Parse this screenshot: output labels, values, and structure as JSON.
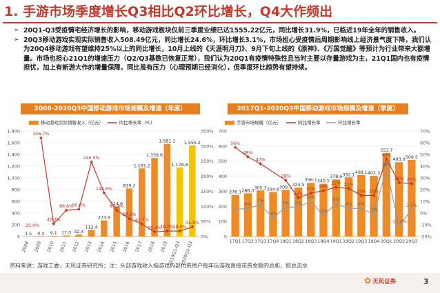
{
  "page": {
    "title": "1. 手游市场季度增长Q3相比Q2环比增长，Q4大作频出",
    "bullets": [
      "20Q1-Q3受疫情宅经济增长的影响，移动游戏板块仅前三季度业绩已达1555.22亿元，同比增长31.9%，已临近19年全年的销售收入。",
      "20Q3移动游戏实现实际销售收入508.49亿元，同比增长24.6%，环比增长3.1%，市场担心受疫情后周期影响线上经济景气度下降，我们认为20Q4移动游戏有望维持25%以上的同比增长，10月上线的《天涯明月刀》、9月下旬上线的《原神》、《万国觉醒》等预计为行业带来大额增量。市场也担心21Q1的增速压力（Q2/Q3基数已恢复正常），我们认为20Q1有疫情特殊性且当时主要以存量游戏为主，21Q1国内也有疫情担忧，加上有新游大作的增量保障，同比虽有压力（心理预期已经消化），但季度环比趋势有望持续。"
    ],
    "source": "资料来源：游戏工委，天风证券研究所；注：头部游戏收入指游戏内部付费用户每年玩游戏直接花费金额的总和，即总流水",
    "logo": "天风证券",
    "page_number": "3"
  },
  "chart_data": [
    {
      "type": "bar",
      "title": "2008-2020Q3中国移动游戏市场规模及增速（年度）",
      "legend": [
        "移动游戏实际销售收入（亿元）",
        "同比增长率（%）"
      ],
      "categories": [
        "2008",
        "2009",
        "2010",
        "2011",
        "2012",
        "2013",
        "2014",
        "2015",
        "2016",
        "2017",
        "2018",
        "2019",
        "2019Q1-Q3",
        "2020Q1-Q3"
      ],
      "series": [
        {
          "name": "移动游戏实际销售收入（亿元）",
          "values": [
            1.5,
            6.4,
            9.1,
            17.0,
            32.4,
            112.4,
            274.9,
            514.6,
            819.2,
            1161.2,
            1339.6,
            1581.1,
            1178.8,
            1555.2
          ],
          "labels": [
            "1.5",
            "6.4",
            "9.1",
            "17.0",
            "32.4",
            "112.4",
            "274.9",
            "514.6",
            "819.2",
            "1,161.2",
            "1,339.6",
            "1,581.1",
            "1,178.8",
            "1,555.2"
          ],
          "color": "#f08a24",
          "highlight_color": "#f5c400"
        },
        {
          "name": "同比增长率（%）",
          "values": [
            null,
            326.7,
            42.2,
            86.8,
            90.6,
            246.9,
            144.6,
            87.2,
            59.2,
            41.7,
            15.4,
            18.0,
            18.0,
            31.9
          ],
          "labels": [
            "",
            "326.7%",
            "42.2%",
            "86.8%",
            "90.6%",
            "246.9%",
            "144.6%",
            "87.2%",
            "59.2%",
            "41.7%",
            "15.4%",
            "18.0%",
            "18.0%",
            "31.9%"
          ],
          "extra_label": {
            "index": 0,
            "text": "25.0%"
          },
          "color": "#c0392b"
        }
      ],
      "y_left_ticks": [
        "0",
        "200",
        "400",
        "600",
        "800",
        "1,000",
        "1,200",
        "1,400",
        "1,600",
        "1,800"
      ],
      "y_left_range": [
        0,
        1800
      ],
      "y_right_ticks": [
        "0%",
        "50%",
        "100%",
        "150%",
        "200%",
        "250%",
        "300%",
        "350%"
      ],
      "y_right_range": [
        0,
        350
      ]
    },
    {
      "type": "bar",
      "title": "2017Q1-2020Q3中国移动游戏市场规模及增速（季度）",
      "legend": [
        "手游市场规模（亿元）",
        "同比增长率",
        "环比增长率"
      ],
      "categories": [
        "17Q1",
        "17Q2",
        "17Q3",
        "17Q4",
        "18Q1",
        "18Q2",
        "18Q3",
        "18Q4",
        "19Q1",
        "19Q2",
        "19Q3",
        "19Q4",
        "20Q1",
        "20Q2",
        "20Q3"
      ],
      "series": [
        {
          "name": "手游市场规模（亿元）",
          "values": [
            276.1,
            286.3,
            305.3,
            294.8,
            309.5,
            324.5,
            356.1,
            349.5,
            378.6,
            392.1,
            408.1,
            402.3,
            553.7,
            493.0,
            508.5
          ],
          "labels": [
            "276.1",
            "286.3",
            "305.3",
            "294.8",
            "309.5",
            "324.5",
            "356.1",
            "349.5",
            "378.6",
            "392.1",
            "408.1",
            "402.3",
            "553.7",
            "493.0",
            "508.5"
          ],
          "color": "#f08a24"
        },
        {
          "name": "同比增长率",
          "values": [
            56,
            48,
            42,
            null,
            28,
            13,
            17,
            19,
            22,
            21,
            15,
            15,
            46,
            26,
            25
          ],
          "labels": [
            "56%",
            "48%",
            "42%",
            "",
            "28%",
            "13%",
            "17%",
            "19%",
            "22%",
            "21%",
            "15%",
            "15%",
            "46%",
            "26%",
            "25%"
          ],
          "color": "#c0392b"
        },
        {
          "name": "环比增长率",
          "values": [
            3,
            4,
            7,
            -4,
            5,
            5,
            10,
            -2,
            8,
            4,
            4,
            -1,
            38,
            -11,
            3
          ],
          "labels": [
            "",
            "4%",
            "7%",
            "-4%",
            "5%",
            "5%",
            "10%",
            "-2%",
            "8%",
            "4%",
            "4%",
            "-1%",
            "38%",
            "-11.0%",
            "3.1%"
          ],
          "color": "#999999"
        }
      ],
      "y_left_ticks": [
        "0",
        "100",
        "200",
        "300",
        "400",
        "500",
        "600",
        "700"
      ],
      "y_left_range": [
        0,
        700
      ],
      "y_right_ticks": [
        "-20%",
        "-10%",
        "0%",
        "10%",
        "20%",
        "30%",
        "40%",
        "50%",
        "60%",
        "70%"
      ],
      "y_right_range": [
        -20,
        70
      ]
    }
  ]
}
